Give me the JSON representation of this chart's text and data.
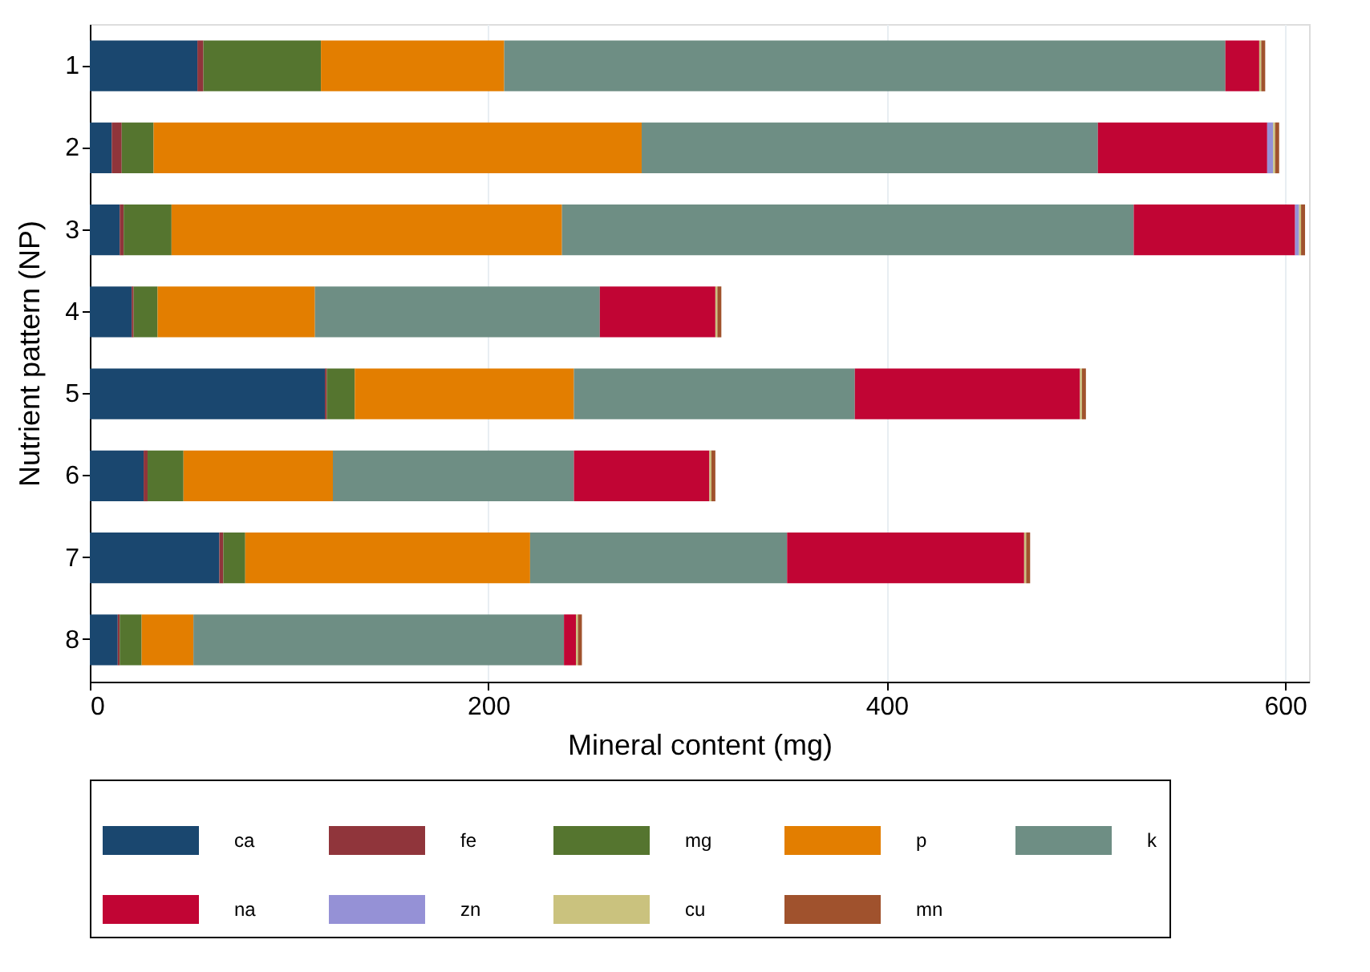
{
  "chart_data": {
    "type": "bar",
    "orientation": "horizontal",
    "stacked": true,
    "xlabel": "Mineral content (mg)",
    "ylabel": "Nutrient pattern (NP)",
    "categories": [
      "1",
      "2",
      "3",
      "4",
      "5",
      "6",
      "7",
      "8"
    ],
    "xlim": [
      0,
      612
    ],
    "xticks": [
      0,
      200,
      400,
      600
    ],
    "grid": "x",
    "legend": "bottom",
    "series": [
      {
        "name": "ca",
        "color": "#1a476f",
        "values": [
          54,
          11,
          15,
          21,
          118,
          27,
          65,
          14
        ]
      },
      {
        "name": "fe",
        "color": "#90353b",
        "values": [
          3,
          5,
          2,
          1,
          1,
          2,
          2,
          1
        ]
      },
      {
        "name": "mg",
        "color": "#55752f",
        "values": [
          59,
          16,
          24,
          12,
          14,
          18,
          11,
          11
        ]
      },
      {
        "name": "p",
        "color": "#e37e00",
        "values": [
          92,
          245,
          196,
          79,
          110,
          75,
          143,
          26
        ]
      },
      {
        "name": "k",
        "color": "#6e8e84",
        "values": [
          362,
          229,
          287,
          143,
          141,
          121,
          129,
          186
        ]
      },
      {
        "name": "na",
        "color": "#c10534",
        "values": [
          17,
          85,
          81,
          58,
          113,
          68,
          119,
          6
        ]
      },
      {
        "name": "zn",
        "color": "#9591d6",
        "values": [
          0,
          3,
          2,
          0,
          0,
          0,
          0,
          0
        ]
      },
      {
        "name": "cu",
        "color": "#cac27e",
        "values": [
          1,
          1,
          1,
          1,
          1,
          1,
          1,
          1
        ]
      },
      {
        "name": "mn",
        "color": "#a0522d",
        "values": [
          2,
          2,
          2,
          2,
          2,
          2,
          2,
          2
        ]
      }
    ]
  }
}
